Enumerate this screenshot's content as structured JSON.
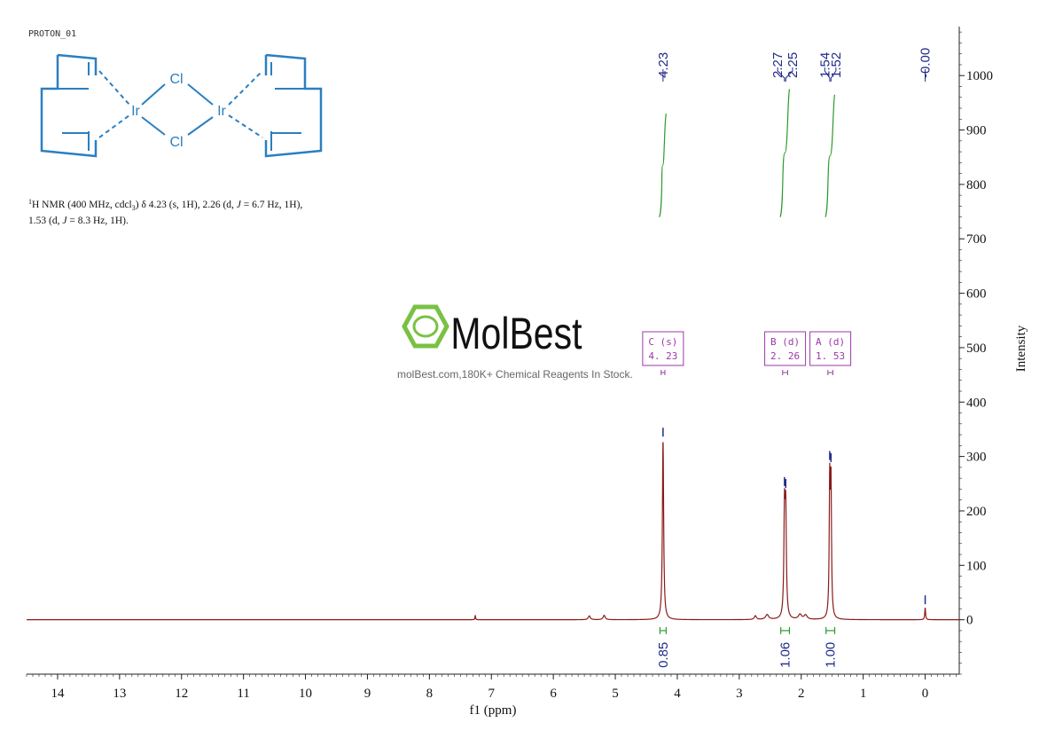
{
  "experiment_label": "PROTON_01",
  "nmr_text": {
    "line1": {
      "sup": "1",
      "a": "H NMR (400 MHz, cdcl",
      "sub": "3",
      "b": ") δ 4.23 (s, 1H), 2.26 (d, ",
      "j": "J",
      "c": " = 6.7 Hz, 1H),"
    },
    "line2": {
      "a": "1.53 (d, ",
      "j": "J",
      "b": " = 8.3 Hz, 1H)."
    }
  },
  "structure": {
    "atoms": [
      "Cl",
      "Ir",
      "Ir",
      "Cl"
    ]
  },
  "watermark": {
    "brand": "MolBest",
    "tagline": "molBest.com,180K+ Chemical Reagents In Stock."
  },
  "colors": {
    "spectrum": "#8b1a1a",
    "peak_label": "#1f2a8a",
    "integral": "#2e9a2e",
    "multiplet": "#9a3aa6",
    "structure": "#2a7fc1",
    "logo": "#7ac143"
  },
  "chart_data": {
    "type": "line",
    "xlabel": "f1 (ppm)",
    "ylabel": "Intensity",
    "xlim": [
      14.5,
      -0.55
    ],
    "ylim": [
      -100,
      1090
    ],
    "x_ticks": [
      "14",
      "13",
      "12",
      "11",
      "10",
      "9",
      "8",
      "7",
      "6",
      "5",
      "4",
      "3",
      "2",
      "1",
      "0"
    ],
    "y_ticks": [
      "0",
      "100",
      "200",
      "300",
      "400",
      "500",
      "600",
      "700",
      "800",
      "900",
      "1000"
    ],
    "peak_labels": [
      "4.23",
      "2.27",
      "2.25",
      "1.54",
      "1.52",
      "-0.00"
    ],
    "peaks": [
      {
        "ppm": 4.23,
        "height": 330,
        "width": 0.012
      },
      {
        "ppm": 2.27,
        "height": 190,
        "width": 0.012
      },
      {
        "ppm": 2.25,
        "height": 185,
        "width": 0.012
      },
      {
        "ppm": 1.54,
        "height": 240,
        "width": 0.01
      },
      {
        "ppm": 1.52,
        "height": 235,
        "width": 0.01
      },
      {
        "ppm": 0.0,
        "height": 22,
        "width": 0.008
      },
      {
        "ppm": 7.26,
        "height": 8,
        "width": 0.006
      },
      {
        "ppm": 5.42,
        "height": 7,
        "width": 0.02
      },
      {
        "ppm": 5.18,
        "height": 8,
        "width": 0.02
      },
      {
        "ppm": 2.74,
        "height": 7,
        "width": 0.02
      },
      {
        "ppm": 2.55,
        "height": 9,
        "width": 0.03
      },
      {
        "ppm": 2.02,
        "height": 9,
        "width": 0.03
      },
      {
        "ppm": 1.93,
        "height": 8,
        "width": 0.03
      }
    ],
    "integrals": [
      {
        "from": 4.28,
        "to": 4.18,
        "value": "0.85",
        "curve_y": [
          740,
          930
        ]
      },
      {
        "from": 2.33,
        "to": 2.19,
        "value": "1.06",
        "curve_y": [
          740,
          975
        ]
      },
      {
        "from": 1.6,
        "to": 1.46,
        "value": "1.00",
        "curve_y": [
          740,
          965
        ]
      }
    ],
    "multiplets": [
      {
        "letter": "C (s)",
        "shift": "4. 23",
        "from": 4.26,
        "to": 4.2
      },
      {
        "letter": "B (d)",
        "shift": "2. 26",
        "from": 2.3,
        "to": 2.22
      },
      {
        "letter": "A (d)",
        "shift": "1. 53",
        "from": 1.57,
        "to": 1.49
      }
    ]
  }
}
